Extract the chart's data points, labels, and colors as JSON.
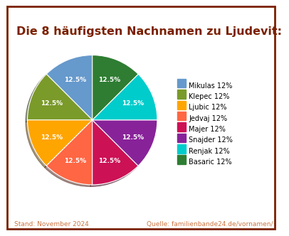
{
  "title": "Die 8 häufigsten Nachnamen zu Ljudevit:",
  "title_color": "#7B2000",
  "title_fontsize": 11.5,
  "labels": [
    "Mikulas",
    "Klepec",
    "Ljubic",
    "Jedvaj",
    "Majer",
    "Snajder",
    "Renjak",
    "Basaric"
  ],
  "values": [
    12.5,
    12.5,
    12.5,
    12.5,
    12.5,
    12.5,
    12.5,
    12.5
  ],
  "colors": [
    "#6699CC",
    "#7A9A2A",
    "#FFA500",
    "#FF6644",
    "#CC1155",
    "#882299",
    "#00CCCC",
    "#2E7D32"
  ],
  "shadow_colors": [
    "#4477AA",
    "#557722",
    "#CC8800",
    "#DD4422",
    "#AA0033",
    "#661177",
    "#009999",
    "#1A5522"
  ],
  "legend_labels": [
    "Mikulas 12%",
    "Klepec 12%",
    "Ljubic 12%",
    "Jedvaj 12%",
    "Majer 12%",
    "Snajder 12%",
    "Renjak 12%",
    "Basaric 12%"
  ],
  "footer_left": "Stand: November 2024",
  "footer_right": "Quelle: familienbande24.de/vornamen/",
  "footer_color": "#CC7744",
  "background_color": "#FFFFFF",
  "border_color": "#7B2000",
  "startangle": 90
}
